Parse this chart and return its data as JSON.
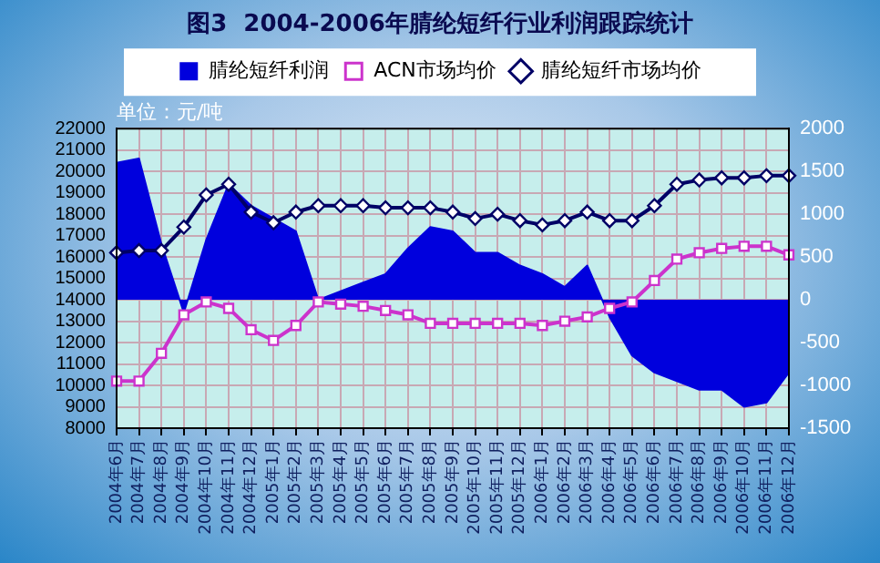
{
  "chart_data": {
    "type": "line",
    "title": "图3  2004-2006年腈纶短纤行业利润跟踪统计",
    "categories": [
      "2004年6月",
      "2004年7月",
      "2004年8月",
      "2004年9月",
      "2004年10月",
      "2004年11月",
      "2004年12月",
      "2005年1月",
      "2005年2月",
      "2005年3月",
      "2005年4月",
      "2005年5月",
      "2005年6月",
      "2005年7月",
      "2005年8月",
      "2005年9月",
      "2005年10月",
      "2005年11月",
      "2005年12月",
      "2006年1月",
      "2006年2月",
      "2006年3月",
      "2006年4月",
      "2006年5月",
      "2006年6月",
      "2006年7月",
      "2006年8月",
      "2006年9月",
      "2006年10月",
      "2006年11月",
      "2006年12月"
    ],
    "series": [
      {
        "name": "腈纶短纤利润",
        "type": "area",
        "axis": "y2",
        "color": "#0000dd",
        "values": [
          1600,
          1650,
          650,
          -150,
          700,
          1350,
          1100,
          950,
          800,
          0,
          100,
          200,
          300,
          600,
          850,
          800,
          550,
          550,
          400,
          300,
          150,
          400,
          -200,
          -650,
          -850,
          -950,
          -1050,
          -1050,
          -1250,
          -1200,
          -850
        ]
      },
      {
        "name": "ACN市场均价",
        "type": "line",
        "color": "#cc33cc",
        "marker": "square",
        "values": [
          10200,
          10200,
          11500,
          13300,
          13900,
          13600,
          12600,
          12100,
          12800,
          13900,
          13800,
          13700,
          13500,
          13300,
          12900,
          12900,
          12900,
          12900,
          12900,
          12800,
          13000,
          13200,
          13600,
          13900,
          14900,
          15900,
          16200,
          16400,
          16500,
          16500,
          16100
        ]
      },
      {
        "name": "腈纶短纤市场均价",
        "type": "line",
        "color": "#000066",
        "marker": "diamond",
        "values": [
          16200,
          16300,
          16300,
          17400,
          18900,
          19400,
          18100,
          17600,
          18100,
          18400,
          18400,
          18400,
          18300,
          18300,
          18300,
          18100,
          17800,
          18000,
          17700,
          17500,
          17700,
          18100,
          17700,
          17700,
          18400,
          19400,
          19600,
          19700,
          19700,
          19800,
          19800
        ]
      }
    ],
    "ylim": [
      8000,
      22000
    ],
    "yticks": [
      8000,
      9000,
      10000,
      11000,
      12000,
      13000,
      14000,
      15000,
      16000,
      17000,
      18000,
      19000,
      20000,
      21000,
      22000
    ],
    "y2lim": [
      -1500,
      2000
    ],
    "y2ticks": [
      -1500,
      -1000,
      -500,
      0,
      500,
      1000,
      1500,
      2000
    ],
    "grid": true,
    "legend": "top",
    "annotations": [
      "单位：元/吨"
    ]
  }
}
